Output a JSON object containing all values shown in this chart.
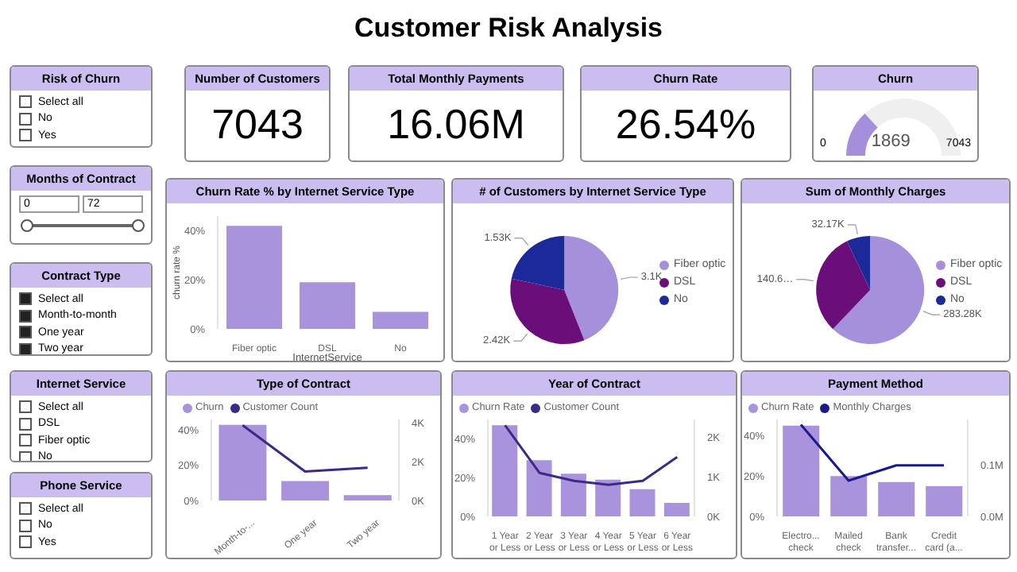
{
  "chart_data": [
    {
      "type": "other",
      "title": "Customer Risk Analysis"
    },
    {
      "type": "other",
      "title": "Risk of Churn",
      "annotations": [
        "Select all",
        "No",
        "Yes"
      ]
    },
    {
      "type": "other",
      "title": "Number of Customers",
      "annotations": [
        "7043"
      ]
    },
    {
      "type": "other",
      "title": "Total Monthly Payments",
      "annotations": [
        "16.06M"
      ]
    },
    {
      "type": "other",
      "title": "Churn Rate",
      "annotations": [
        "26.54%"
      ]
    },
    {
      "type": "donut",
      "title": "Churn",
      "categories": [
        null,
        null
      ],
      "values": [
        1869,
        5174
      ],
      "colors": [
        "#a58fdc",
        "#efefef"
      ],
      "value_labels": [
        "1869",
        null
      ],
      "annotations": [
        "0",
        "7043"
      ]
    },
    {
      "type": "other",
      "title": "Months of Contract",
      "annotations": [
        "0",
        "72"
      ]
    },
    {
      "type": "other",
      "title": "Contract Type",
      "annotations": [
        "Select all",
        "Month-to-month",
        "One year",
        "Two year"
      ]
    },
    {
      "type": "other",
      "title": "Internet Service",
      "annotations": [
        "Select all",
        "DSL",
        "Fiber optic",
        "No"
      ]
    },
    {
      "type": "other",
      "title": "Phone Service",
      "annotations": [
        "Select all",
        "No",
        "Yes"
      ]
    },
    {
      "type": "bar",
      "title": "Churn Rate % by Internet Service Type",
      "xlabel": "InternetService",
      "ylabel": "churn rate %",
      "categories": [
        "Fiber optic",
        "DSL",
        "No"
      ],
      "values": [
        42,
        19,
        7
      ],
      "color": "#a993dc",
      "ylim": [
        0,
        46
      ],
      "yticks": [
        {
          "value": 0,
          "label": "0%"
        },
        {
          "value": 20,
          "label": "20%"
        },
        {
          "value": 40,
          "label": "40%"
        }
      ]
    },
    {
      "type": "pie",
      "title": "# of Customers by Internet Service Type",
      "categories": [
        "Fiber optic",
        "DSL",
        "No"
      ],
      "values": [
        3096,
        2421,
        1526
      ],
      "value_labels": [
        "3.1K",
        "2.42K",
        "1.53K"
      ],
      "colors": [
        "#a590db",
        "#6a0f7a",
        "#1c2a99"
      ],
      "legend": "right"
    },
    {
      "type": "pie",
      "title": "Sum of Monthly Charges",
      "categories": [
        "Fiber optic",
        "DSL",
        "No"
      ],
      "values": [
        283280,
        140600,
        32170
      ],
      "value_labels": [
        "283.28K",
        "140.6…",
        "32.17K"
      ],
      "colors": [
        "#a590db",
        "#6a0f7a",
        "#1c2a99"
      ],
      "legend": "right"
    },
    {
      "type": "bar",
      "title": "Type of Contract",
      "categories": [
        "Month-to-...",
        "One year",
        "Two year"
      ],
      "legend": "top left",
      "series": [
        {
          "name": "Churn",
          "type": "bar",
          "color": "#a993dc",
          "values": [
            43,
            11,
            3
          ]
        },
        {
          "name": "Customer Count",
          "type": "line",
          "axis": "y2",
          "color": "#3b2a86",
          "values": [
            3900,
            1500,
            1700
          ]
        }
      ],
      "ylim": [
        0,
        46
      ],
      "yticks": [
        {
          "value": 0,
          "label": "0%"
        },
        {
          "value": 20,
          "label": "20%"
        },
        {
          "value": 40,
          "label": "40%"
        }
      ],
      "y2lim": [
        0,
        4200
      ],
      "y2ticks": [
        {
          "value": 0,
          "label": "0K"
        },
        {
          "value": 2000,
          "label": "2K"
        },
        {
          "value": 4000,
          "label": "4K"
        }
      ]
    },
    {
      "type": "bar",
      "title": "Year of Contract",
      "categories": [
        "1 Year or Less",
        "2 Year or Less",
        "3 Year or Less",
        "4 Year or Less",
        "5 Year or Less",
        "6 Year or Less"
      ],
      "legend": "top left",
      "series": [
        {
          "name": "Churn Rate",
          "type": "bar",
          "color": "#a993dc",
          "values": [
            47,
            29,
            22,
            19,
            14,
            7
          ]
        },
        {
          "name": "Customer Count",
          "type": "line",
          "axis": "y2",
          "color": "#3b2a86",
          "values": [
            2300,
            1100,
            900,
            800,
            900,
            1500
          ]
        }
      ],
      "ylim": [
        0,
        50
      ],
      "yticks": [
        {
          "value": 0,
          "label": "0%"
        },
        {
          "value": 20,
          "label": "20%"
        },
        {
          "value": 40,
          "label": "40%"
        }
      ],
      "y2lim": [
        0,
        2450
      ],
      "y2ticks": [
        {
          "value": 0,
          "label": "0K"
        },
        {
          "value": 1000,
          "label": "1K"
        },
        {
          "value": 2000,
          "label": "2K"
        }
      ]
    },
    {
      "type": "bar",
      "title": "Payment Method",
      "categories": [
        "Electro... check",
        "Mailed check",
        "Bank transfer...",
        "Credit card (a..."
      ],
      "legend": "top left",
      "series": [
        {
          "name": "Churn Rate",
          "type": "bar",
          "color": "#a993dc",
          "values": [
            45,
            20,
            17,
            15
          ]
        },
        {
          "name": "Monthly Charges",
          "type": "line",
          "axis": "y2",
          "color": "#1a1a8c",
          "values": [
            0.18,
            0.07,
            0.1,
            0.1
          ]
        }
      ],
      "ylim": [
        0,
        48
      ],
      "yticks": [
        {
          "value": 0,
          "label": "0%"
        },
        {
          "value": 20,
          "label": "20%"
        },
        {
          "value": 40,
          "label": "40%"
        }
      ],
      "y2lim": [
        0,
        0.19
      ],
      "y2ticks": [
        {
          "value": 0,
          "label": "0.0M"
        },
        {
          "value": 0.1,
          "label": "0.1M"
        }
      ]
    }
  ]
}
